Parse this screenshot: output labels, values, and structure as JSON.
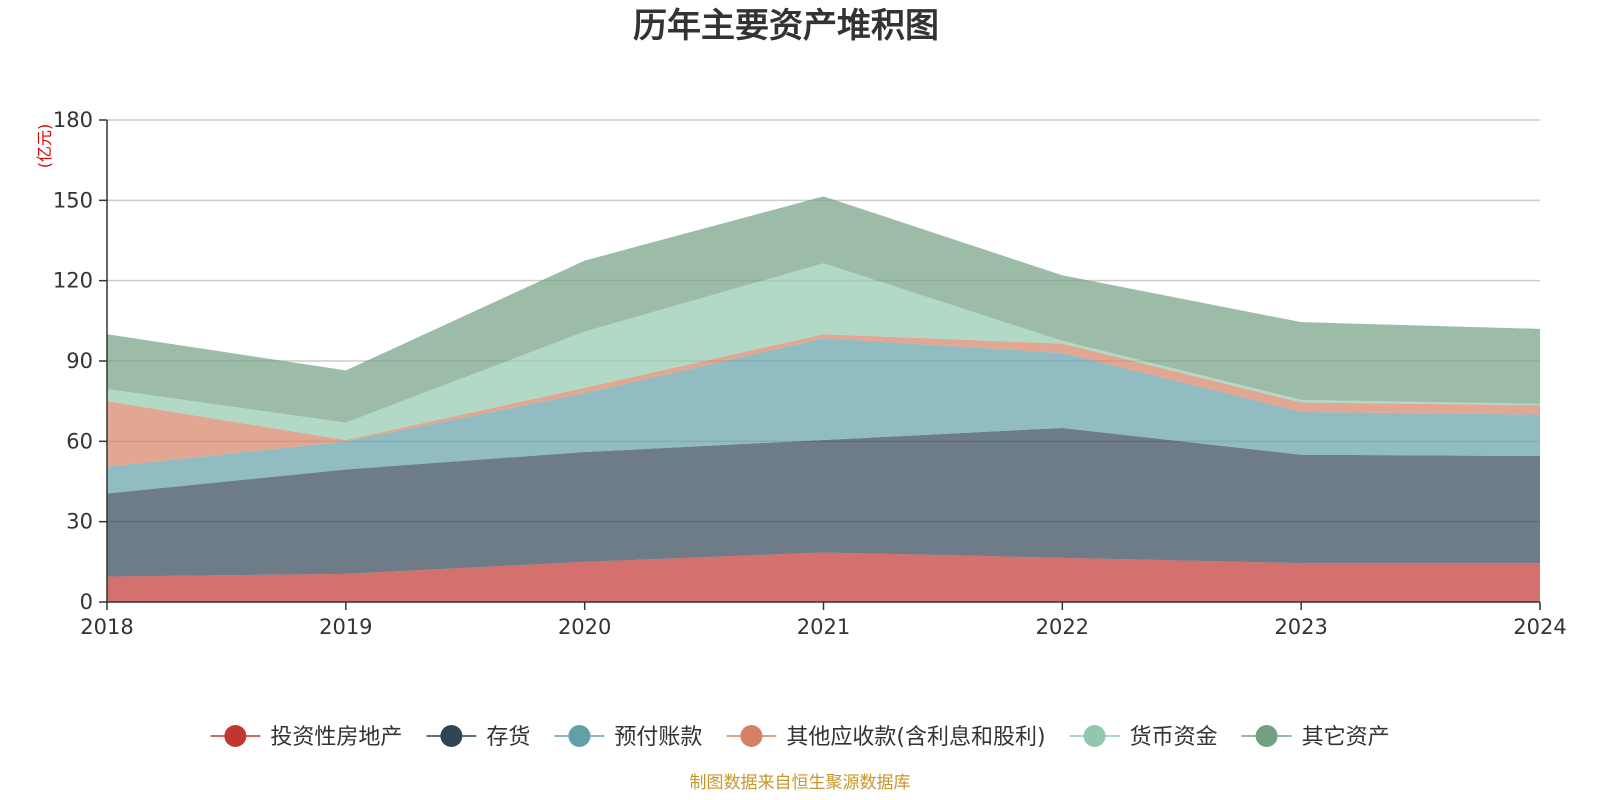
{
  "chart_data": {
    "type": "area",
    "stacked": true,
    "title": "历年主要资产堆积图",
    "unit_label": "(亿元)",
    "x": [
      "2018",
      "2019",
      "2020",
      "2021",
      "2022",
      "2023",
      "2024"
    ],
    "ylim": [
      0,
      180
    ],
    "yticks": [
      0,
      30,
      60,
      90,
      120,
      150,
      180
    ],
    "grid": true,
    "legend_position": "bottom",
    "series": [
      {
        "name": "投资性房地产",
        "color": "#c23531",
        "values": [
          9.5,
          10.5,
          15,
          18.5,
          16.5,
          14.5,
          14.5
        ]
      },
      {
        "name": "存货",
        "color": "#2f4554",
        "values": [
          31,
          39,
          41,
          42,
          48.5,
          40.5,
          40
        ]
      },
      {
        "name": "预付账款",
        "color": "#61a0a8",
        "values": [
          10,
          10.5,
          22,
          38,
          28,
          16,
          15.5
        ]
      },
      {
        "name": "其他应收款(含利息和股利)",
        "color": "#d48265",
        "values": [
          24.5,
          0.5,
          2,
          1.5,
          3.5,
          3.5,
          3.5
        ]
      },
      {
        "name": "货币资金",
        "color": "#91c7ae",
        "values": [
          4.5,
          6.5,
          21,
          26.5,
          1,
          1,
          0.5
        ]
      },
      {
        "name": "其它资产",
        "color": "#749f83",
        "values": [
          20.5,
          19.5,
          26.5,
          25,
          24.5,
          29,
          28
        ]
      }
    ],
    "source_note": "制图数据来自恒生聚源数据库"
  }
}
